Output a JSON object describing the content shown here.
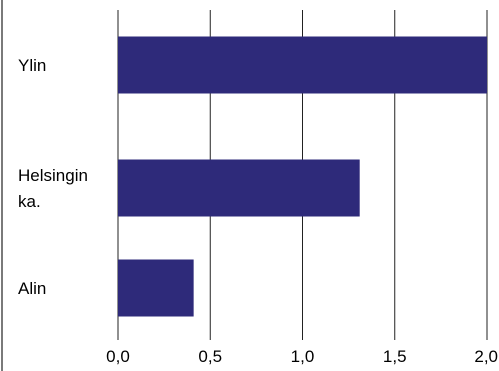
{
  "chart_data": {
    "type": "bar",
    "orientation": "horizontal",
    "title": "",
    "xlabel": "",
    "ylabel": "",
    "categories": [
      [
        "Ylin"
      ],
      [
        "Helsingin",
        "ka."
      ],
      [
        "Alin"
      ]
    ],
    "values": [
      2.0,
      1.31,
      0.41
    ],
    "xlim": [
      0,
      2.0
    ],
    "xticks": [
      0,
      0.5,
      1.0,
      1.5,
      2.0
    ],
    "xtick_labels": [
      "0,0",
      "0,5",
      "1,0",
      "1,5",
      "2,0"
    ],
    "grid": "vertical",
    "bar_color": "#2e2a7a",
    "gridline_color": "#222222"
  }
}
